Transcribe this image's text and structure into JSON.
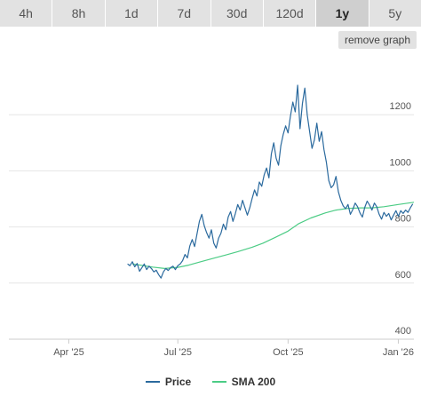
{
  "tabs": [
    {
      "label": "4h",
      "active": false
    },
    {
      "label": "8h",
      "active": false
    },
    {
      "label": "1d",
      "active": false
    },
    {
      "label": "7d",
      "active": false
    },
    {
      "label": "30d",
      "active": false
    },
    {
      "label": "120d",
      "active": false
    },
    {
      "label": "1y",
      "active": true
    },
    {
      "label": "5y",
      "active": false
    }
  ],
  "remove_graph_label": "remove graph",
  "chart_data": {
    "type": "line",
    "x_range": [
      "2025-02-10",
      "2026-01-14"
    ],
    "ylim": [
      400,
      1400
    ],
    "y_ticks": [
      400,
      600,
      800,
      1000,
      1200
    ],
    "x_ticks": [
      {
        "date": "2025-04-01",
        "label": "Apr '25"
      },
      {
        "date": "2025-07-01",
        "label": "Jul '25"
      },
      {
        "date": "2025-10-01",
        "label": "Oct '25"
      },
      {
        "date": "2026-01-01",
        "label": "Jan '26"
      }
    ],
    "grid": "horizontal",
    "legend_position": "bottom",
    "series": [
      {
        "name": "Price",
        "color": "#2b6a9e",
        "points": [
          [
            "2025-05-20",
            668
          ],
          [
            "2025-05-22",
            662
          ],
          [
            "2025-05-24",
            676
          ],
          [
            "2025-05-26",
            658
          ],
          [
            "2025-05-28",
            670
          ],
          [
            "2025-05-30",
            642
          ],
          [
            "2025-06-01",
            655
          ],
          [
            "2025-06-03",
            668
          ],
          [
            "2025-06-05",
            648
          ],
          [
            "2025-06-07",
            660
          ],
          [
            "2025-06-09",
            652
          ],
          [
            "2025-06-11",
            640
          ],
          [
            "2025-06-13",
            646
          ],
          [
            "2025-06-15",
            630
          ],
          [
            "2025-06-17",
            618
          ],
          [
            "2025-06-19",
            640
          ],
          [
            "2025-06-21",
            652
          ],
          [
            "2025-06-23",
            645
          ],
          [
            "2025-06-25",
            655
          ],
          [
            "2025-06-27",
            660
          ],
          [
            "2025-06-29",
            648
          ],
          [
            "2025-07-01",
            662
          ],
          [
            "2025-07-03",
            668
          ],
          [
            "2025-07-05",
            680
          ],
          [
            "2025-07-07",
            702
          ],
          [
            "2025-07-09",
            690
          ],
          [
            "2025-07-11",
            732
          ],
          [
            "2025-07-13",
            755
          ],
          [
            "2025-07-15",
            730
          ],
          [
            "2025-07-17",
            775
          ],
          [
            "2025-07-19",
            820
          ],
          [
            "2025-07-21",
            845
          ],
          [
            "2025-07-23",
            805
          ],
          [
            "2025-07-25",
            780
          ],
          [
            "2025-07-27",
            760
          ],
          [
            "2025-07-29",
            790
          ],
          [
            "2025-07-31",
            742
          ],
          [
            "2025-08-02",
            725
          ],
          [
            "2025-08-04",
            760
          ],
          [
            "2025-08-06",
            778
          ],
          [
            "2025-08-08",
            810
          ],
          [
            "2025-08-10",
            790
          ],
          [
            "2025-08-12",
            835
          ],
          [
            "2025-08-14",
            855
          ],
          [
            "2025-08-16",
            820
          ],
          [
            "2025-08-18",
            848
          ],
          [
            "2025-08-20",
            880
          ],
          [
            "2025-08-22",
            860
          ],
          [
            "2025-08-24",
            895
          ],
          [
            "2025-08-26",
            868
          ],
          [
            "2025-08-28",
            842
          ],
          [
            "2025-08-30",
            868
          ],
          [
            "2025-09-01",
            902
          ],
          [
            "2025-09-03",
            932
          ],
          [
            "2025-09-05",
            910
          ],
          [
            "2025-09-07",
            960
          ],
          [
            "2025-09-09",
            945
          ],
          [
            "2025-09-11",
            985
          ],
          [
            "2025-09-13",
            1010
          ],
          [
            "2025-09-15",
            975
          ],
          [
            "2025-09-17",
            1060
          ],
          [
            "2025-09-19",
            1100
          ],
          [
            "2025-09-21",
            1045
          ],
          [
            "2025-09-23",
            1020
          ],
          [
            "2025-09-25",
            1090
          ],
          [
            "2025-09-27",
            1130
          ],
          [
            "2025-09-29",
            1160
          ],
          [
            "2025-10-01",
            1135
          ],
          [
            "2025-10-03",
            1195
          ],
          [
            "2025-10-05",
            1245
          ],
          [
            "2025-10-07",
            1210
          ],
          [
            "2025-10-09",
            1305
          ],
          [
            "2025-10-11",
            1150
          ],
          [
            "2025-10-13",
            1240
          ],
          [
            "2025-10-15",
            1295
          ],
          [
            "2025-10-17",
            1200
          ],
          [
            "2025-10-19",
            1140
          ],
          [
            "2025-10-21",
            1080
          ],
          [
            "2025-10-23",
            1110
          ],
          [
            "2025-10-25",
            1170
          ],
          [
            "2025-10-27",
            1105
          ],
          [
            "2025-10-29",
            1140
          ],
          [
            "2025-10-31",
            1075
          ],
          [
            "2025-11-02",
            1030
          ],
          [
            "2025-11-04",
            965
          ],
          [
            "2025-11-06",
            940
          ],
          [
            "2025-11-08",
            950
          ],
          [
            "2025-11-10",
            980
          ],
          [
            "2025-11-12",
            925
          ],
          [
            "2025-11-14",
            895
          ],
          [
            "2025-11-16",
            875
          ],
          [
            "2025-11-18",
            865
          ],
          [
            "2025-11-20",
            880
          ],
          [
            "2025-11-22",
            845
          ],
          [
            "2025-11-24",
            862
          ],
          [
            "2025-11-26",
            885
          ],
          [
            "2025-11-28",
            872
          ],
          [
            "2025-11-30",
            850
          ],
          [
            "2025-12-02",
            835
          ],
          [
            "2025-12-04",
            870
          ],
          [
            "2025-12-06",
            892
          ],
          [
            "2025-12-08",
            878
          ],
          [
            "2025-12-10",
            860
          ],
          [
            "2025-12-12",
            885
          ],
          [
            "2025-12-14",
            872
          ],
          [
            "2025-12-16",
            845
          ],
          [
            "2025-12-18",
            828
          ],
          [
            "2025-12-20",
            852
          ],
          [
            "2025-12-22",
            838
          ],
          [
            "2025-12-24",
            848
          ],
          [
            "2025-12-26",
            825
          ],
          [
            "2025-12-28",
            842
          ],
          [
            "2025-12-30",
            858
          ],
          [
            "2026-01-01",
            838
          ],
          [
            "2026-01-03",
            858
          ],
          [
            "2026-01-05",
            848
          ],
          [
            "2026-01-07",
            860
          ],
          [
            "2026-01-09",
            852
          ],
          [
            "2026-01-11",
            868
          ],
          [
            "2026-01-13",
            882
          ]
        ]
      },
      {
        "name": "SMA 200",
        "color": "#4ccc85",
        "points": [
          [
            "2025-05-24",
            668
          ],
          [
            "2025-06-01",
            663
          ],
          [
            "2025-06-10",
            657
          ],
          [
            "2025-06-20",
            652
          ],
          [
            "2025-07-01",
            656
          ],
          [
            "2025-07-10",
            664
          ],
          [
            "2025-07-20",
            676
          ],
          [
            "2025-08-01",
            690
          ],
          [
            "2025-08-10",
            700
          ],
          [
            "2025-08-20",
            712
          ],
          [
            "2025-09-01",
            728
          ],
          [
            "2025-09-10",
            742
          ],
          [
            "2025-09-20",
            762
          ],
          [
            "2025-10-01",
            785
          ],
          [
            "2025-10-10",
            812
          ],
          [
            "2025-10-20",
            832
          ],
          [
            "2025-11-01",
            850
          ],
          [
            "2025-11-10",
            860
          ],
          [
            "2025-11-20",
            866
          ],
          [
            "2025-12-01",
            868
          ],
          [
            "2025-12-10",
            868
          ],
          [
            "2025-12-20",
            872
          ],
          [
            "2026-01-01",
            880
          ],
          [
            "2026-01-14",
            888
          ]
        ]
      }
    ]
  }
}
